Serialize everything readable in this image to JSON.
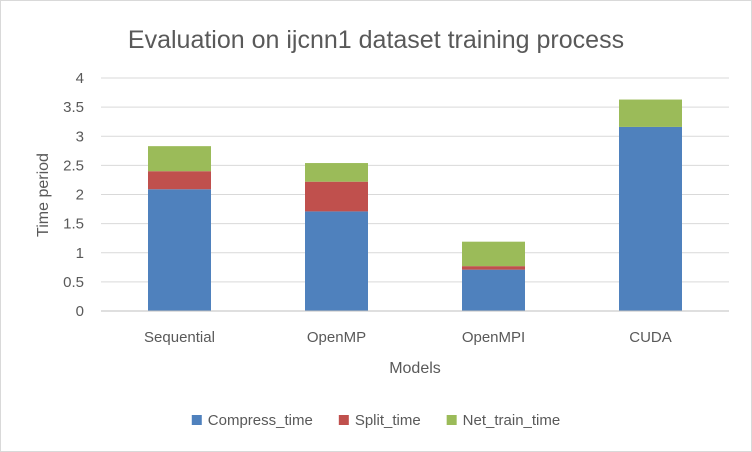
{
  "chart_data": {
    "type": "bar",
    "stacked": true,
    "title": "Evaluation on ijcnn1 dataset training process",
    "xlabel": "Models",
    "ylabel": "Time period",
    "ylim": [
      0,
      4
    ],
    "yticks": [
      "0",
      "0.5",
      "1",
      "1.5",
      "2",
      "2.5",
      "3",
      "3.5",
      "4"
    ],
    "grid": true,
    "legend_position": "bottom",
    "categories": [
      "Sequential",
      "OpenMP",
      "OpenMPI",
      "CUDA"
    ],
    "series": [
      {
        "name": "Compress_time",
        "color": "#4f81bd",
        "values": [
          2.09,
          1.71,
          0.71,
          3.16
        ]
      },
      {
        "name": "Split_time",
        "color": "#c0504d",
        "values": [
          0.31,
          0.51,
          0.06,
          0.0
        ]
      },
      {
        "name": "Net_train_time",
        "color": "#9bbb59",
        "values": [
          0.43,
          0.32,
          0.42,
          0.47
        ]
      }
    ]
  }
}
